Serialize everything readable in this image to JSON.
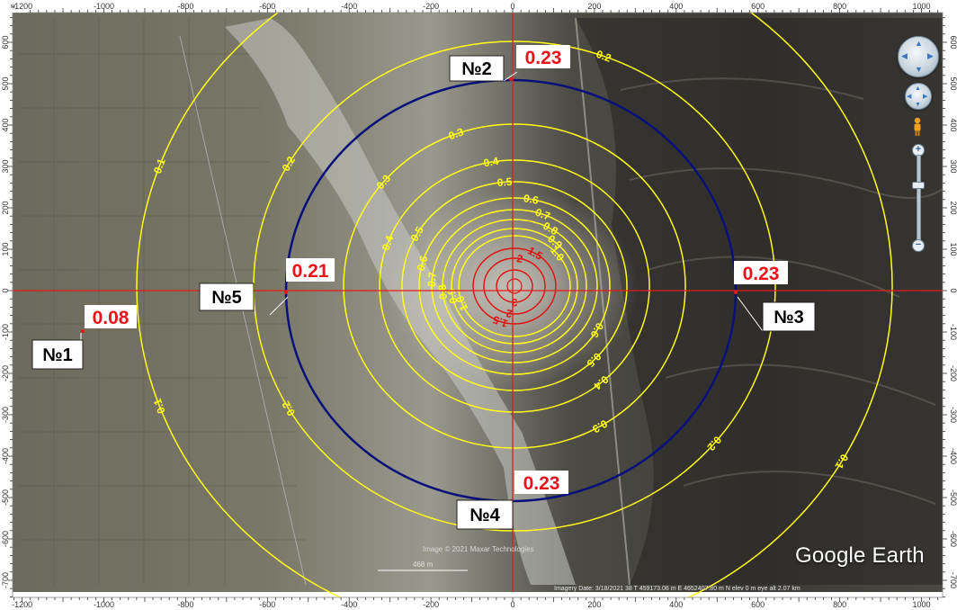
{
  "units_label": "м",
  "axes": {
    "x_ticks": [
      "-1200",
      "-1000",
      "-800",
      "-600",
      "-400",
      "-200",
      "0",
      "200",
      "400",
      "600",
      "800",
      "1000"
    ],
    "y_ticks": [
      "600",
      "500",
      "400",
      "300",
      "200",
      "100",
      "0",
      "-100",
      "-200",
      "-300",
      "-400",
      "-500",
      "-600",
      "-700"
    ]
  },
  "contours": {
    "yellow_labels": [
      "0.1",
      "0.2",
      "0.3",
      "0.4",
      "0.5",
      "0.6",
      "0.7",
      "0.8",
      "0.9",
      "1.0"
    ],
    "red_labels": [
      "1.5",
      "2",
      "3"
    ]
  },
  "points": [
    {
      "id": "№1",
      "value": "0.08"
    },
    {
      "id": "№2",
      "value": "0.23"
    },
    {
      "id": "№3",
      "value": "0.23"
    },
    {
      "id": "№4",
      "value": "0.23"
    },
    {
      "id": "№5",
      "value": "0.21"
    }
  ],
  "scale_text": "468 m",
  "copyright": "Image © 2021 Maxar Technologies",
  "status_bar": "Imagery Date: 3/18/2021     38 T 459173.06 m E 4652407.80 m N  elev   0 m   eye alt   2.07 km",
  "brand": "Google Earth",
  "colors": {
    "contour_yellow": "#ffff1a",
    "contour_red": "#e01010",
    "ring_navy": "#0b0f7a",
    "axis_red": "#e81a1a",
    "value_text": "#e8141c"
  },
  "controls": {
    "look_icon": "look-joystick-icon",
    "move_icon": "move-joystick-icon",
    "street_view_icon": "pegman-icon",
    "zoom_in": "+",
    "zoom_out": "−"
  }
}
